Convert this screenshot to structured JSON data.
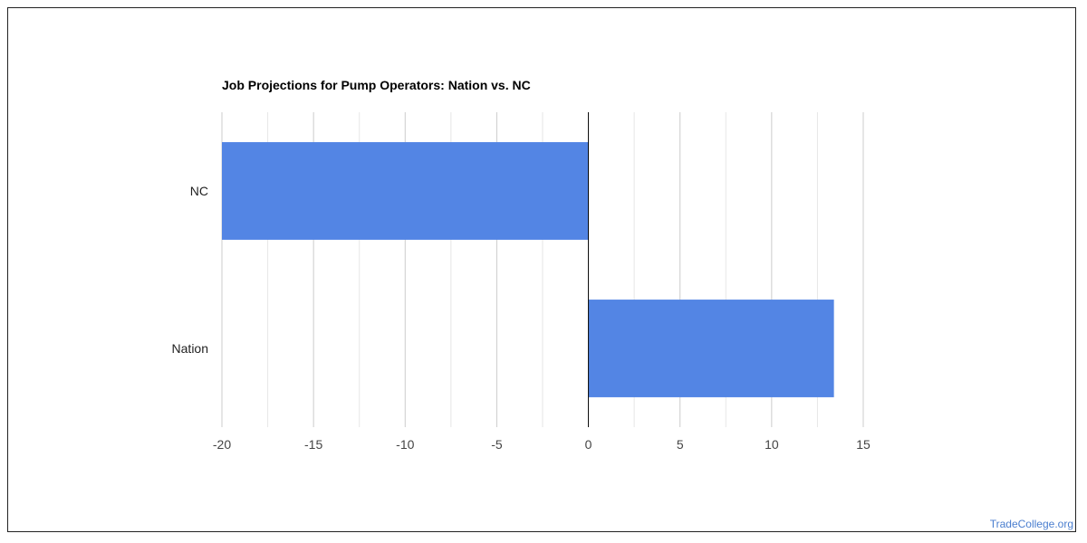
{
  "chart_data": {
    "type": "bar",
    "orientation": "horizontal",
    "title": "Job Projections for Pump Operators: Nation vs. NC",
    "categories": [
      "NC",
      "Nation"
    ],
    "values": [
      -20,
      13.4
    ],
    "xlim": [
      -20,
      15
    ],
    "xticks": [
      "-20",
      "-15",
      "-10",
      "-5",
      "0",
      "5",
      "10",
      "15"
    ],
    "xtick_values": [
      -20,
      -15,
      -10,
      -5,
      0,
      5,
      10,
      15
    ],
    "xlabel": "",
    "ylabel": "",
    "grid": true,
    "legend": "none",
    "bar_color": "#5385e4",
    "zero_line_color": "#000000",
    "grid_color": "#cccccc"
  },
  "source_label": "TradeCollege.org"
}
